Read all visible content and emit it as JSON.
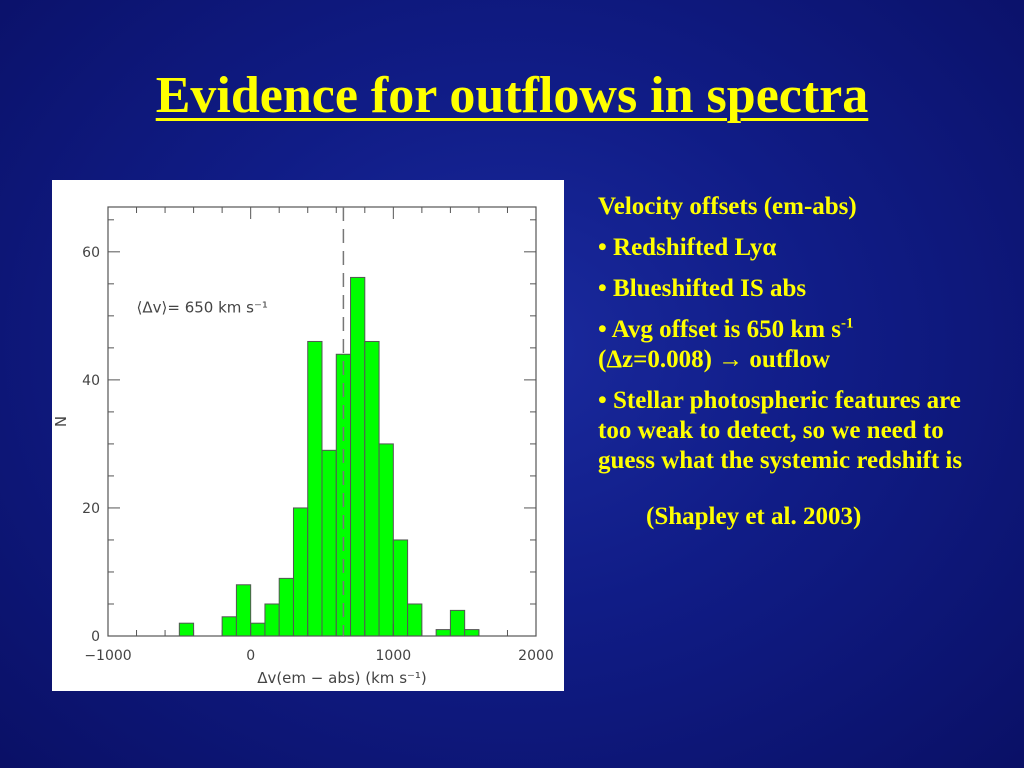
{
  "slide": {
    "title": "Evidence for outflows in spectra"
  },
  "panel": {
    "heading": "Velocity offsets (em-abs)",
    "bullet_char": "•",
    "bullet1": "Redshifted Lyα",
    "bullet2": "Blueshifted IS abs",
    "bullet3_line1": "Avg offset is 650 km s",
    "bullet3_sup": "-1",
    "bullet3_line2": "(Δz=0.008) → outflow",
    "bullet4": "Stellar photospheric features are too weak to detect, so we need to guess what the systemic redshift is",
    "citation": "(Shapley et al. 2003)"
  },
  "chart_data": {
    "type": "bar",
    "title": "",
    "xlabel": "Δv(em − abs) (km s⁻¹)",
    "ylabel": "N",
    "xlim": [
      -1000,
      2000
    ],
    "ylim": [
      0,
      67
    ],
    "x_ticks": [
      -1000,
      0,
      1000,
      2000
    ],
    "x_tick_labels": [
      "−1000",
      "0",
      "1000",
      "2000"
    ],
    "y_ticks": [
      0,
      20,
      40,
      60
    ],
    "y_tick_labels": [
      "0",
      "20",
      "40",
      "60"
    ],
    "bin_width": 100,
    "bin_left_edges": [
      -500,
      -400,
      -300,
      -200,
      -100,
      0,
      100,
      200,
      300,
      400,
      500,
      600,
      700,
      800,
      900,
      1000,
      1100,
      1200,
      1300,
      1400,
      1500
    ],
    "values": [
      2,
      0,
      0,
      3,
      8,
      2,
      5,
      9,
      20,
      46,
      29,
      44,
      56,
      46,
      30,
      15,
      5,
      0,
      1,
      4,
      1
    ],
    "mean_line": {
      "x": 650
    },
    "annotation": "⟨Δv⟩= 650 km s⁻¹",
    "bar_color": "#00ff00",
    "grid": false
  }
}
